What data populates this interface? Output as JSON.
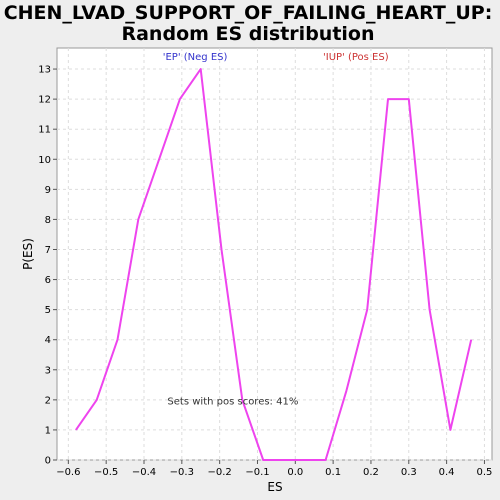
{
  "chart_data": {
    "type": "line",
    "title_line1": "CHEN_LVAD_SUPPORT_OF_FAILING_HEART_UP:",
    "title_line2": "Random ES distribution",
    "xlabel": "ES",
    "ylabel": "P(ES)",
    "xlim": [
      -0.63,
      0.52
    ],
    "ylim": [
      0,
      13.7
    ],
    "xticks": [
      -0.6,
      -0.5,
      -0.4,
      -0.3,
      -0.2,
      -0.1,
      0.0,
      0.1,
      0.2,
      0.3,
      0.4,
      0.5
    ],
    "xtick_labels": [
      "−0.6",
      "−0.5",
      "−0.4",
      "−0.3",
      "−0.2",
      "−0.1",
      "0.0",
      "0.1",
      "0.2",
      "0.3",
      "0.4",
      "0.5"
    ],
    "yticks": [
      0,
      1,
      2,
      3,
      4,
      5,
      6,
      7,
      8,
      9,
      10,
      11,
      12,
      13
    ],
    "ytick_labels": [
      "0",
      "1",
      "2",
      "3",
      "4",
      "5",
      "6",
      "7",
      "8",
      "9",
      "10",
      "11",
      "12",
      "13"
    ],
    "grid": true,
    "series": [
      {
        "color": "#ee44ee",
        "x": [
          -0.58,
          -0.525,
          -0.47,
          -0.415,
          -0.36,
          -0.305,
          -0.25,
          -0.195,
          -0.14,
          -0.085,
          -0.03,
          0.025,
          0.08,
          0.135,
          0.19,
          0.245,
          0.3,
          0.355,
          0.41,
          0.465
        ],
        "y": [
          1,
          2,
          4,
          8,
          10,
          12,
          13,
          7,
          2,
          0,
          0,
          0,
          0,
          2.3,
          5,
          12,
          12,
          5,
          1,
          4
        ]
      }
    ],
    "annotations": [
      {
        "text": "'EP' (Neg ES)",
        "x": -0.265,
        "y": 13.3,
        "color": "#3333cc"
      },
      {
        "text": "'IUP' (Pos ES)",
        "x": 0.16,
        "y": 13.3,
        "color": "#cc3333"
      },
      {
        "text": "Sets with pos scores: 41%",
        "x": -0.165,
        "y": 1.85,
        "color": "#333333"
      }
    ]
  }
}
